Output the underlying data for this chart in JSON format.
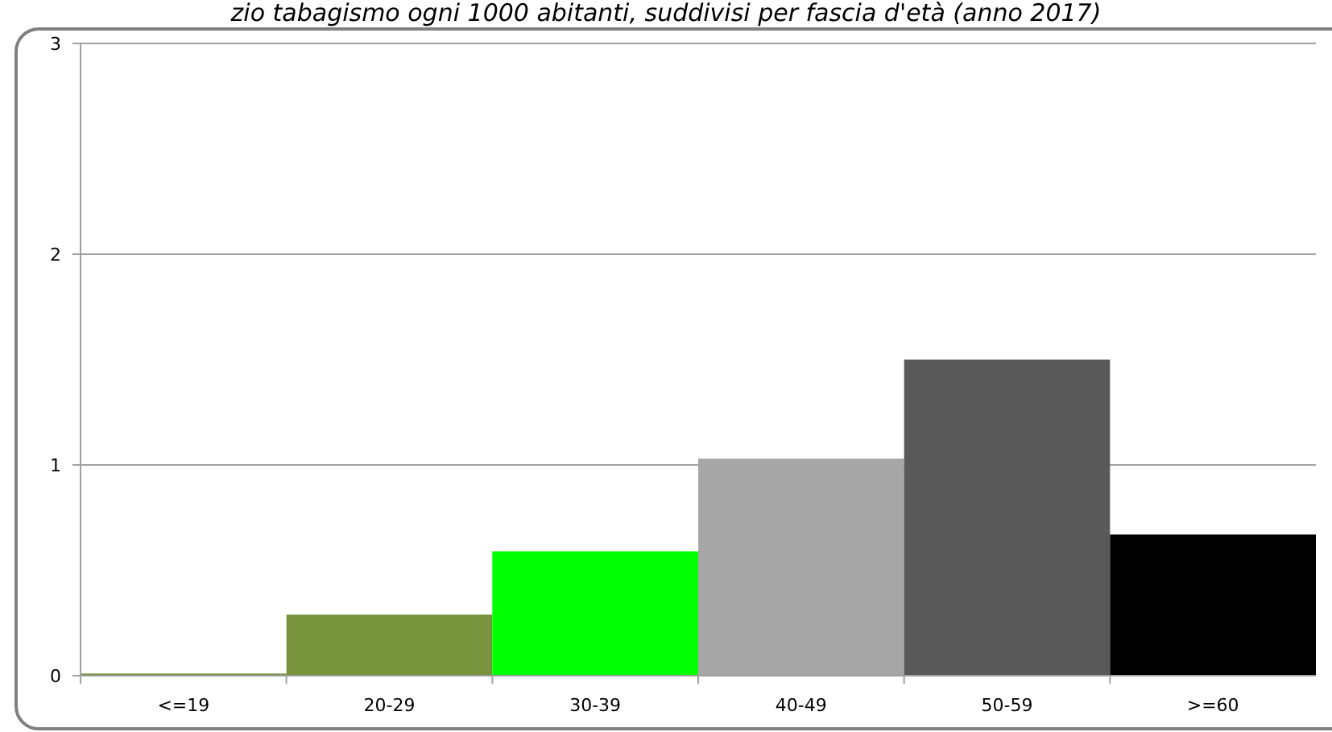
{
  "chart_data": {
    "type": "bar",
    "title": "zio tabagismo ogni 1000 abitanti, suddivisi per fascia d'età (anno 2017)",
    "categories": [
      "<=19",
      "20-29",
      "30-39",
      "40-49",
      "50-59",
      ">=60"
    ],
    "values": [
      0.01,
      0.29,
      0.59,
      1.03,
      1.5,
      0.67
    ],
    "colors": [
      "#77933c",
      "#77933c",
      "#00ff00",
      "#a6a6a6",
      "#595959",
      "#000000"
    ],
    "ylim": [
      0,
      3
    ],
    "yticks": [
      0,
      1,
      2,
      3
    ],
    "grid": "y"
  }
}
